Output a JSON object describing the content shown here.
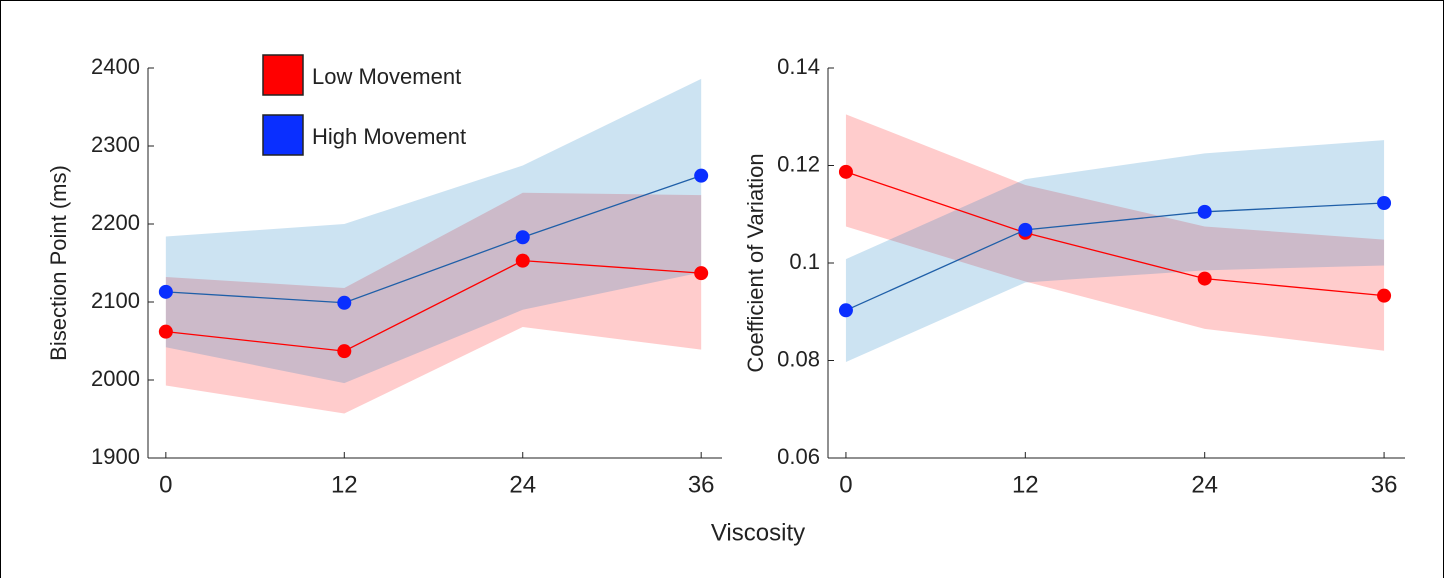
{
  "chart_data": [
    {
      "type": "line",
      "ylabel": "Bisection Point (ms)",
      "xlabel": "Viscosity",
      "x": [
        0,
        12,
        24,
        36
      ],
      "xlim": [
        -1.2,
        37.4
      ],
      "xticks": [
        0,
        12,
        24,
        36
      ],
      "ylim": [
        1900,
        2400
      ],
      "yticks": [
        1900,
        2000,
        2100,
        2200,
        2300,
        2400
      ],
      "series": [
        {
          "name": "Low Movement",
          "color": "#ff0000",
          "marker_color": "#ff0000",
          "band_color": "rgba(255,0,0,0.2)",
          "values": [
            2062,
            2037,
            2153,
            2137
          ],
          "band_lower": [
            1993,
            1957,
            2068,
            2039
          ],
          "band_upper": [
            2132,
            2118,
            2240,
            2237
          ]
        },
        {
          "name": "High Movement",
          "color": "#1f5fa8",
          "marker_color": "#0a2fff",
          "band_color": "rgba(0,114,189,0.2)",
          "values": [
            2113,
            2099,
            2183,
            2262
          ],
          "band_lower": [
            2042,
            1996,
            2090,
            2138
          ],
          "band_upper": [
            2184,
            2200,
            2275,
            2386
          ]
        }
      ]
    },
    {
      "type": "line",
      "ylabel": "Coefficient of Variation",
      "x": [
        0,
        12,
        24,
        36
      ],
      "xlim": [
        -1.2,
        37.4
      ],
      "xticks": [
        0,
        12,
        24,
        36
      ],
      "ylim": [
        0.06,
        0.14
      ],
      "yticks": [
        0.06,
        0.08,
        0.1,
        0.12,
        0.14
      ],
      "series": [
        {
          "color": "#ff0000",
          "marker_color": "#ff0000",
          "band_color": "rgba(255,0,0,0.2)",
          "values": [
            0.1187,
            0.1062,
            0.0968,
            0.0933
          ],
          "band_lower": [
            0.1075,
            0.0962,
            0.0865,
            0.082
          ],
          "band_upper": [
            0.1305,
            0.116,
            0.1075,
            0.1048
          ]
        },
        {
          "color": "#1f5fa8",
          "marker_color": "#0a2fff",
          "band_color": "rgba(0,114,189,0.2)",
          "values": [
            0.0903,
            0.1068,
            0.1105,
            0.1123
          ],
          "band_lower": [
            0.0797,
            0.096,
            0.0985,
            0.0995
          ],
          "band_upper": [
            0.1008,
            0.1172,
            0.1225,
            0.1252
          ]
        }
      ]
    }
  ]
}
